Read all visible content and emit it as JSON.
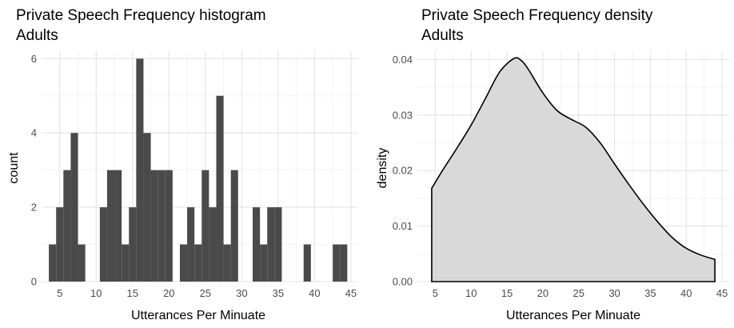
{
  "chart_data": [
    {
      "type": "bar",
      "title": "Private Speech Frequency histogram",
      "subtitle": "Adults",
      "xlabel": "Utterances Per Minuate",
      "ylabel": "count",
      "xlim": [
        2.5,
        46
      ],
      "ylim": [
        0,
        6.2
      ],
      "x_ticks": [
        5,
        10,
        15,
        20,
        25,
        30,
        35,
        40,
        45
      ],
      "y_ticks": [
        0,
        2,
        4,
        6
      ],
      "grid": true,
      "bar_color": "#4a4a4a",
      "bin_width": 1.0,
      "bins": [
        {
          "x": 4.0,
          "count": 1
        },
        {
          "x": 5.0,
          "count": 2
        },
        {
          "x": 6.0,
          "count": 3
        },
        {
          "x": 7.0,
          "count": 4
        },
        {
          "x": 8.0,
          "count": 1
        },
        {
          "x": 9.0,
          "count": 0
        },
        {
          "x": 10.0,
          "count": 0
        },
        {
          "x": 11.0,
          "count": 2
        },
        {
          "x": 12.0,
          "count": 3
        },
        {
          "x": 13.0,
          "count": 3
        },
        {
          "x": 14.0,
          "count": 1
        },
        {
          "x": 15.0,
          "count": 2
        },
        {
          "x": 16.0,
          "count": 6
        },
        {
          "x": 17.0,
          "count": 4
        },
        {
          "x": 18.0,
          "count": 3
        },
        {
          "x": 19.0,
          "count": 3
        },
        {
          "x": 20.0,
          "count": 3
        },
        {
          "x": 21.0,
          "count": 0
        },
        {
          "x": 22.0,
          "count": 1
        },
        {
          "x": 23.0,
          "count": 2
        },
        {
          "x": 24.0,
          "count": 1
        },
        {
          "x": 25.0,
          "count": 3
        },
        {
          "x": 26.0,
          "count": 2
        },
        {
          "x": 27.0,
          "count": 5
        },
        {
          "x": 28.0,
          "count": 1
        },
        {
          "x": 29.0,
          "count": 3
        },
        {
          "x": 30.0,
          "count": 0
        },
        {
          "x": 31.0,
          "count": 0
        },
        {
          "x": 32.0,
          "count": 2
        },
        {
          "x": 33.0,
          "count": 1
        },
        {
          "x": 34.0,
          "count": 2
        },
        {
          "x": 35.0,
          "count": 2
        },
        {
          "x": 36.0,
          "count": 0
        },
        {
          "x": 37.0,
          "count": 0
        },
        {
          "x": 38.0,
          "count": 0
        },
        {
          "x": 39.0,
          "count": 1
        },
        {
          "x": 40.0,
          "count": 0
        },
        {
          "x": 41.0,
          "count": 0
        },
        {
          "x": 42.0,
          "count": 0
        },
        {
          "x": 43.0,
          "count": 1
        },
        {
          "x": 44.0,
          "count": 1
        }
      ]
    },
    {
      "type": "area",
      "title": "Private Speech Frequency density",
      "subtitle": "Adults",
      "xlabel": "Utterances Per Minuate",
      "ylabel": "density",
      "xlim": [
        2.5,
        46
      ],
      "ylim": [
        0,
        0.0415
      ],
      "x_ticks": [
        5,
        10,
        15,
        20,
        25,
        30,
        35,
        40,
        45
      ],
      "y_ticks": [
        "0.00",
        "0.01",
        "0.02",
        "0.03",
        "0.04"
      ],
      "grid": true,
      "fill_color": "#d9d9d9",
      "line_color": "#000000",
      "x": [
        4.5,
        6,
        8,
        10,
        12,
        14,
        16,
        17,
        18,
        20,
        22,
        24,
        26,
        28,
        30,
        32,
        34,
        36,
        38,
        40,
        42,
        44
      ],
      "y": [
        0.0168,
        0.02,
        0.024,
        0.0282,
        0.033,
        0.0378,
        0.0402,
        0.0398,
        0.0382,
        0.034,
        0.0308,
        0.0292,
        0.0278,
        0.025,
        0.0212,
        0.0175,
        0.014,
        0.0108,
        0.008,
        0.006,
        0.0048,
        0.004
      ]
    }
  ]
}
